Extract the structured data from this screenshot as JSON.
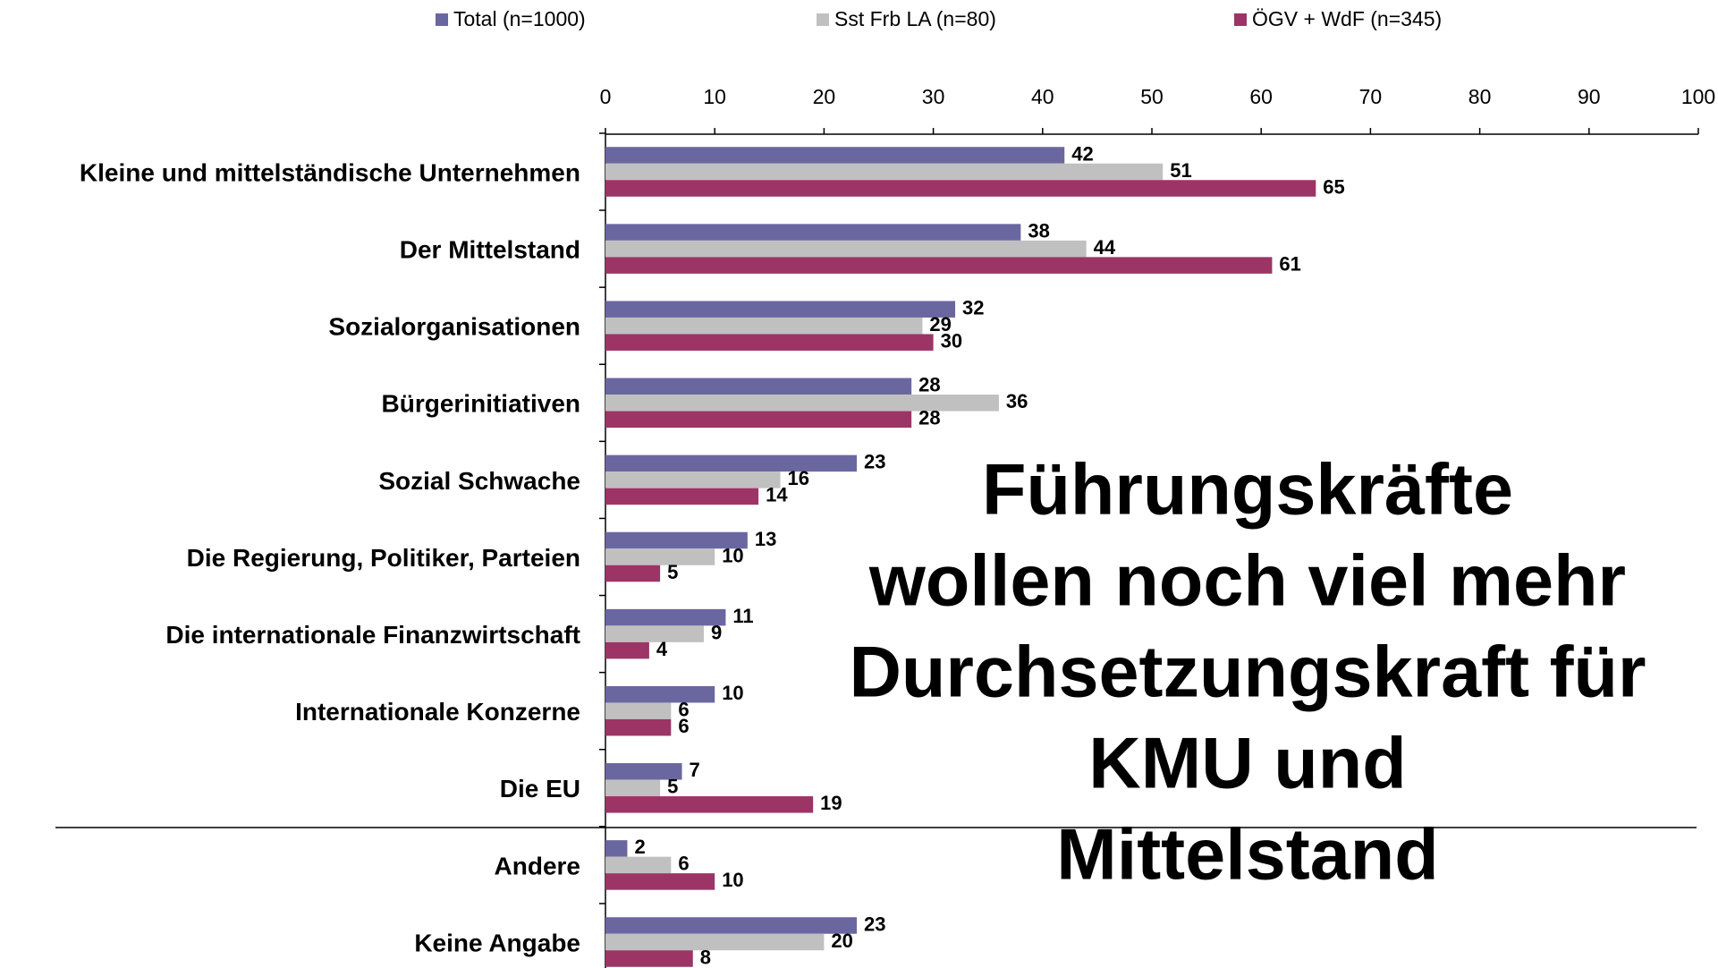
{
  "chart_data": {
    "type": "hbar",
    "categories": [
      "Kleine und mittelständische Unternehmen",
      "Der Mittelstand",
      "Sozialorganisationen",
      "Bürgerinitiativen",
      "Sozial Schwache",
      "Die Regierung, Politiker, Parteien",
      "Die internationale Finanzwirtschaft",
      "Internationale Konzerne",
      "Die EU",
      "Andere",
      "Keine Angabe"
    ],
    "series": [
      {
        "name": "Total (n=1000)",
        "color": "#6a67a0",
        "values": [
          42,
          38,
          32,
          28,
          23,
          13,
          11,
          10,
          7,
          2,
          23
        ]
      },
      {
        "name": "Sst Frb LA (n=80)",
        "color": "#c0c0c0",
        "values": [
          51,
          44,
          29,
          36,
          16,
          10,
          9,
          6,
          5,
          6,
          20
        ]
      },
      {
        "name": "ÖGV + WdF (n=345)",
        "color": "#9c3466",
        "values": [
          65,
          61,
          30,
          28,
          14,
          5,
          4,
          6,
          19,
          10,
          8
        ]
      }
    ],
    "xlim": [
      0,
      100
    ],
    "xticks": [
      0,
      10,
      20,
      30,
      40,
      50,
      60,
      70,
      80,
      90,
      100
    ],
    "legend": "top",
    "annotation": [
      "Führungskräfte",
      "wollen noch viel mehr",
      "Durchsetzungskraft für",
      "KMU und",
      "Mittelstand"
    ]
  }
}
